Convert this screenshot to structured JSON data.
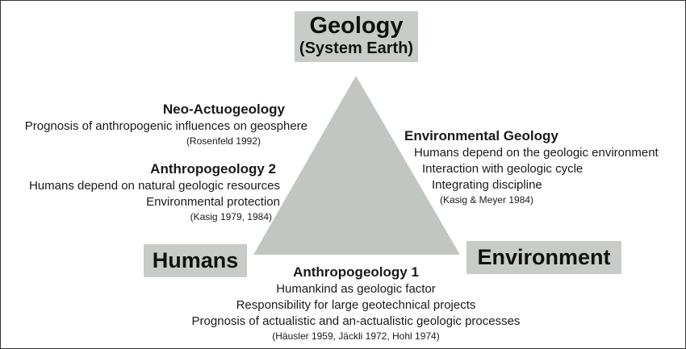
{
  "corners": {
    "top": {
      "line1": "Geology",
      "line2": "(System Earth)"
    },
    "left": "Humans",
    "right": "Environment"
  },
  "blocks": {
    "neo_actuogeology": {
      "title": "Neo-Actuogeology",
      "lines": [
        "Prognosis of anthropogenic influences on geosphere"
      ],
      "ref": "(Rosenfeld 1992)"
    },
    "anthropogeology_2": {
      "title": "Anthropogeology 2",
      "lines": [
        "Humans depend on natural geologic resources",
        "Environmental protection"
      ],
      "ref": "(Kasig 1979, 1984)"
    },
    "environmental_geology": {
      "title": "Environmental Geology",
      "lines": [
        "Humans depend on the geologic environment",
        "Interaction with geologic cycle",
        "Integrating discipline"
      ],
      "ref": "(Kasig & Meyer 1984)"
    },
    "anthropogeology_1": {
      "title": "Anthropogeology 1",
      "lines": [
        "Humankind as geologic factor",
        "Responsibility for large geotechnical projects",
        "Prognosis of actualistic and an-actualistic geologic processes"
      ],
      "ref": "(Häusler 1959, Jäckli 1972, Hohl 1974)"
    }
  },
  "colors": {
    "triangle": "#c1c6c2",
    "corner_box": "#c8ccc9",
    "text": "#1a1a1a"
  }
}
